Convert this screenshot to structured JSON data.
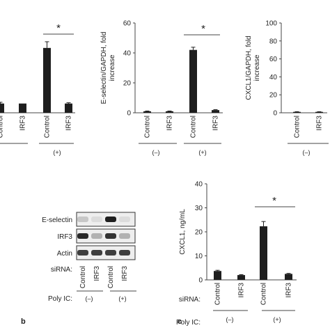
{
  "chart_data": [
    {
      "type": "bar",
      "categories": [
        "Control",
        "IRF3",
        "Control",
        "IRF3"
      ],
      "groups": [
        "(–)",
        "(+)"
      ],
      "values": [
        6,
        6,
        42,
        6
      ],
      "errors": [
        0.8,
        0,
        4,
        0.5
      ],
      "ylabel": "",
      "ylim": [
        0,
        55
      ],
      "yticks": [],
      "significance": "*"
    },
    {
      "type": "bar",
      "categories": [
        "Control",
        "IRF3",
        "Control",
        "IRF3"
      ],
      "groups": [
        "(–)",
        "(+)"
      ],
      "values": [
        1,
        1,
        42,
        1.8
      ],
      "errors": [
        0.2,
        0.2,
        1.8,
        0.3
      ],
      "ylabel": "E-selectin/GAPDH, fold increase",
      "ylim": [
        0,
        60
      ],
      "yticks": [
        "0",
        "20",
        "40",
        "60"
      ],
      "significance": "*"
    },
    {
      "type": "bar",
      "categories": [
        "Control",
        "IRF3"
      ],
      "groups": [
        "(–)"
      ],
      "values": [
        1,
        1
      ],
      "errors": [
        0.2,
        0.2
      ],
      "ylabel": "CXCL1/GAPDH, fold increase",
      "ylim": [
        0,
        100
      ],
      "yticks": [
        "0",
        "20",
        "40",
        "60",
        "80",
        "100"
      ]
    },
    {
      "type": "bar",
      "panel_label": "c",
      "categories": [
        "Control",
        "IRF3",
        "Control",
        "IRF3"
      ],
      "groups": [
        "(–)",
        "(+)"
      ],
      "values": [
        3.7,
        2,
        22.3,
        2.5
      ],
      "errors": [
        0.3,
        0.2,
        2,
        0.2
      ],
      "ylabel": "CXCL1, ng/mL",
      "ylim": [
        0,
        40
      ],
      "yticks": [
        "0",
        "10",
        "20",
        "30",
        "40"
      ],
      "significance": "*",
      "row_labels": {
        "sirna": "siRNA:",
        "polyic": "Poly IC:"
      }
    }
  ],
  "blot": {
    "panel_label": "b",
    "rows": [
      "E-selectin",
      "IRF3",
      "Actin"
    ],
    "band_intensity": [
      [
        0.15,
        0.05,
        0.95,
        0.05
      ],
      [
        0.9,
        0.25,
        0.85,
        0.25
      ],
      [
        0.8,
        0.8,
        0.8,
        0.8
      ]
    ],
    "sirna_label": "siRNA:",
    "lanes": [
      "Control",
      "IRF3",
      "Control",
      "IRF3"
    ],
    "polyic_label": "Poly IC:",
    "polyic_groups": [
      "(–)",
      "(+)"
    ]
  }
}
